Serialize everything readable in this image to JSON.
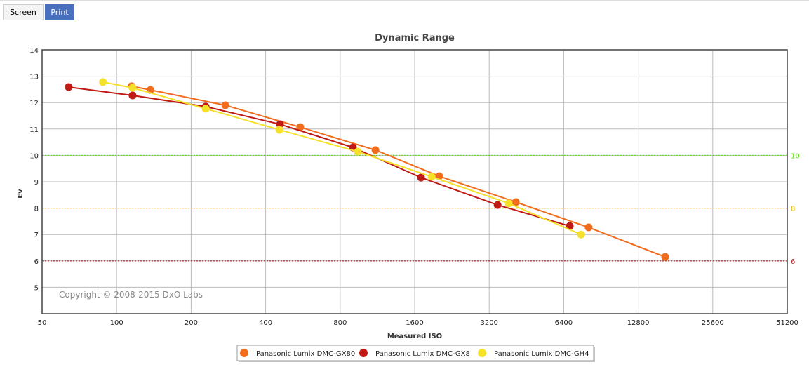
{
  "tabs": [
    {
      "label": "Screen"
    },
    {
      "label": "Print"
    }
  ],
  "chart_data": {
    "type": "line",
    "title": "Dynamic Range",
    "xlabel": "Measured ISO",
    "ylabel": "Ev",
    "xscale": "log2",
    "xlim": [
      50,
      51200
    ],
    "ylim": [
      4,
      14
    ],
    "xticks": [
      50,
      100,
      200,
      400,
      800,
      1600,
      3200,
      6400,
      12800,
      25600,
      51200
    ],
    "yticks": [
      5,
      6,
      7,
      8,
      9,
      10,
      11,
      12,
      13,
      14
    ],
    "grid": true,
    "copyright": "Copyright © 2008-2015 DxO Labs",
    "reference_lines": [
      {
        "value": 10,
        "label": "10",
        "color": "#66dd22"
      },
      {
        "value": 8,
        "label": "8",
        "color": "#e8b400"
      },
      {
        "value": 6,
        "label": "6",
        "color": "#b02020"
      }
    ],
    "legend_position": "bottom-center",
    "series": [
      {
        "name": "Panasonic Lumix DMC-GX80",
        "color": "#f26c1d",
        "x": [
          115,
          137,
          275,
          552,
          1111,
          2010,
          4100,
          8070,
          16450
        ],
        "y": [
          12.62,
          12.48,
          11.9,
          11.07,
          10.2,
          9.21,
          8.23,
          7.27,
          6.15
        ]
      },
      {
        "name": "Panasonic Lumix DMC-GX8",
        "color": "#c01a14",
        "x": [
          64,
          116,
          229,
          457,
          901,
          1697,
          3460,
          6770
        ],
        "y": [
          12.59,
          12.27,
          11.85,
          11.18,
          10.3,
          9.16,
          8.12,
          7.32
        ]
      },
      {
        "name": "Panasonic Lumix DMC-GH4",
        "color": "#f5e12a",
        "x": [
          88,
          116,
          229,
          455,
          943,
          1873,
          3840,
          7520
        ],
        "y": [
          12.78,
          12.56,
          11.77,
          10.97,
          10.14,
          9.19,
          8.18,
          7.0
        ]
      }
    ]
  }
}
